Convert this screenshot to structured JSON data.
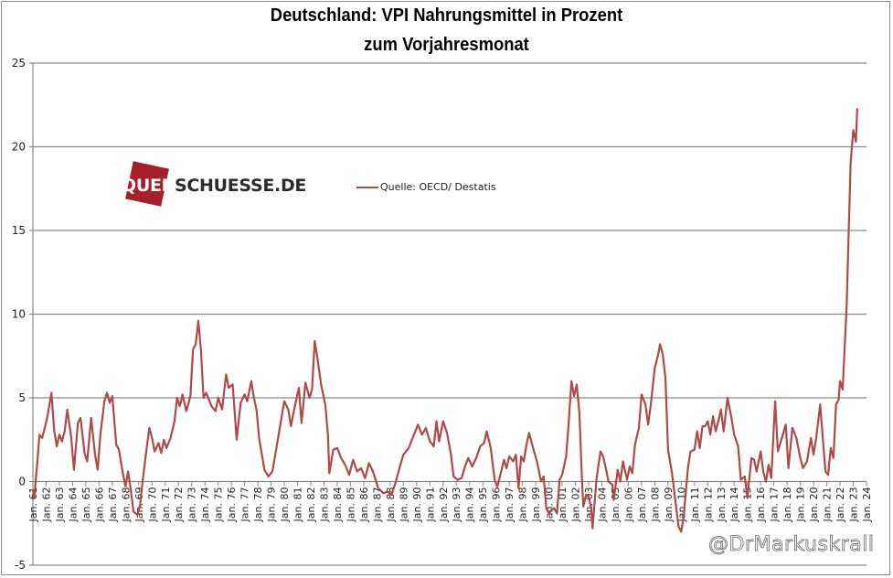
{
  "chart_data": {
    "type": "line",
    "title": "Deutschland: VPI Nahrungsmittel in Prozent",
    "subtitle": "zum Vorjahresmonat",
    "xlabel": "",
    "ylabel": "",
    "ylim": [
      -5,
      25
    ],
    "xlim": [
      1961,
      2024
    ],
    "yticks": [
      -5,
      0,
      5,
      10,
      15,
      20,
      25
    ],
    "ytick_labels": [
      "-5",
      "0",
      "5",
      "10",
      "15",
      "20",
      "25"
    ],
    "xtick_labels": [
      "Jan. 61",
      "Jan. 62",
      "Jan. 63",
      "Jan. 64",
      "Jan. 65",
      "Jan. 66",
      "Jan. 67",
      "Jan. 68",
      "Jan. 69",
      "Jan. 70",
      "Jan. 71",
      "Jan. 72",
      "Jan. 73",
      "Jan. 74",
      "Jan. 75",
      "Jan. 76",
      "Jan. 77",
      "Jan. 78",
      "Jan. 79",
      "Jan. 80",
      "Jan. 81",
      "Jan. 82",
      "Jan. 83",
      "Jan. 84",
      "Jan. 85",
      "Jan. 86",
      "Jan. 87",
      "Jan. 88",
      "Jan. 89",
      "Jan. 90",
      "Jan. 91",
      "Jan. 92",
      "Jan. 93",
      "Jan. 94",
      "Jan. 95",
      "Jan. 96",
      "Jan. 97",
      "Jan. 98",
      "Jan. 99",
      "Jan. 00",
      "Jan. 01",
      "Jan. 02",
      "Jan. 03",
      "Jan. 04",
      "Jan. 05",
      "Jan. 06",
      "Jan. 07",
      "Jan. 08",
      "Jan. 09",
      "Jan. 10",
      "Jan. 11",
      "Jan. 12",
      "Jan. 13",
      "Jan. 14",
      "Jan. 15",
      "Jan. 16",
      "Jan. 17",
      "Jan. 18",
      "Jan. 19",
      "Jan. 20",
      "Jan. 21",
      "Jan. 22",
      "Jan. 23",
      "Jan. 24"
    ],
    "grid": "horizontal",
    "legend_position": "top-center",
    "series": [
      {
        "name": "Quelle: OECD/ Destatis",
        "color": "#b04a48",
        "points": [
          [
            1961.0,
            -0.5
          ],
          [
            1961.1,
            -1.0
          ],
          [
            1961.3,
            0.8
          ],
          [
            1961.5,
            2.8
          ],
          [
            1961.7,
            2.6
          ],
          [
            1961.9,
            3.2
          ],
          [
            1962.1,
            3.9
          ],
          [
            1962.4,
            5.3
          ],
          [
            1962.6,
            3.1
          ],
          [
            1962.8,
            2.1
          ],
          [
            1963.0,
            2.8
          ],
          [
            1963.2,
            2.4
          ],
          [
            1963.4,
            3.0
          ],
          [
            1963.6,
            4.3
          ],
          [
            1963.9,
            2.6
          ],
          [
            1964.1,
            0.7
          ],
          [
            1964.4,
            3.5
          ],
          [
            1964.6,
            3.8
          ],
          [
            1964.9,
            1.7
          ],
          [
            1965.1,
            1.2
          ],
          [
            1965.4,
            3.8
          ],
          [
            1965.7,
            1.6
          ],
          [
            1965.9,
            0.7
          ],
          [
            1966.1,
            2.8
          ],
          [
            1966.4,
            4.8
          ],
          [
            1966.6,
            5.3
          ],
          [
            1966.8,
            4.7
          ],
          [
            1967.0,
            5.1
          ],
          [
            1967.3,
            2.2
          ],
          [
            1967.5,
            1.9
          ],
          [
            1967.8,
            0.5
          ],
          [
            1968.0,
            -0.3
          ],
          [
            1968.2,
            0.6
          ],
          [
            1968.4,
            -0.5
          ],
          [
            1968.6,
            -1.8
          ],
          [
            1968.9,
            -2.0
          ],
          [
            1969.1,
            -1.4
          ],
          [
            1969.3,
            0.1
          ],
          [
            1969.6,
            2.0
          ],
          [
            1969.8,
            3.2
          ],
          [
            1970.0,
            2.6
          ],
          [
            1970.2,
            1.8
          ],
          [
            1970.5,
            2.3
          ],
          [
            1970.7,
            1.7
          ],
          [
            1970.9,
            2.5
          ],
          [
            1971.1,
            2.0
          ],
          [
            1971.4,
            2.6
          ],
          [
            1971.7,
            3.6
          ],
          [
            1971.9,
            5.0
          ],
          [
            1972.1,
            4.5
          ],
          [
            1972.3,
            5.2
          ],
          [
            1972.6,
            4.2
          ],
          [
            1972.9,
            5.1
          ],
          [
            1973.1,
            7.9
          ],
          [
            1973.3,
            8.2
          ],
          [
            1973.5,
            9.6
          ],
          [
            1973.7,
            7.9
          ],
          [
            1973.9,
            5.0
          ],
          [
            1974.1,
            5.3
          ],
          [
            1974.5,
            4.5
          ],
          [
            1974.8,
            4.2
          ],
          [
            1975.0,
            5.0
          ],
          [
            1975.3,
            4.3
          ],
          [
            1975.6,
            6.4
          ],
          [
            1975.8,
            5.6
          ],
          [
            1976.1,
            5.8
          ],
          [
            1976.4,
            2.5
          ],
          [
            1976.7,
            4.7
          ],
          [
            1977.0,
            5.2
          ],
          [
            1977.2,
            4.8
          ],
          [
            1977.5,
            6.0
          ],
          [
            1977.7,
            5.0
          ],
          [
            1977.9,
            4.3
          ],
          [
            1978.1,
            2.6
          ],
          [
            1978.5,
            0.7
          ],
          [
            1978.8,
            0.3
          ],
          [
            1979.1,
            0.6
          ],
          [
            1979.4,
            2.0
          ],
          [
            1979.7,
            3.4
          ],
          [
            1980.0,
            4.8
          ],
          [
            1980.3,
            4.3
          ],
          [
            1980.5,
            3.3
          ],
          [
            1980.8,
            4.5
          ],
          [
            1981.1,
            5.6
          ],
          [
            1981.3,
            3.5
          ],
          [
            1981.6,
            5.9
          ],
          [
            1981.9,
            5.0
          ],
          [
            1982.1,
            5.5
          ],
          [
            1982.3,
            8.4
          ],
          [
            1982.5,
            7.4
          ],
          [
            1982.8,
            5.7
          ],
          [
            1983.1,
            4.6
          ],
          [
            1983.3,
            2.8
          ],
          [
            1983.4,
            0.5
          ],
          [
            1983.7,
            1.9
          ],
          [
            1984.0,
            2.0
          ],
          [
            1984.3,
            1.4
          ],
          [
            1984.6,
            1.0
          ],
          [
            1984.9,
            0.4
          ],
          [
            1985.2,
            1.3
          ],
          [
            1985.5,
            0.6
          ],
          [
            1985.8,
            0.8
          ],
          [
            1986.1,
            0.2
          ],
          [
            1986.4,
            1.1
          ],
          [
            1986.7,
            0.6
          ],
          [
            1987.1,
            -0.4
          ],
          [
            1987.5,
            -0.7
          ],
          [
            1987.8,
            -0.6
          ],
          [
            1988.1,
            -0.8
          ],
          [
            1988.4,
            -0.1
          ],
          [
            1988.7,
            0.8
          ],
          [
            1989.0,
            1.6
          ],
          [
            1989.4,
            2.0
          ],
          [
            1989.8,
            2.8
          ],
          [
            1990.1,
            3.4
          ],
          [
            1990.4,
            2.8
          ],
          [
            1990.7,
            3.2
          ],
          [
            1991.0,
            2.4
          ],
          [
            1991.3,
            2.1
          ],
          [
            1991.5,
            3.6
          ],
          [
            1991.7,
            2.4
          ],
          [
            1992.0,
            3.6
          ],
          [
            1992.3,
            2.9
          ],
          [
            1992.6,
            1.6
          ],
          [
            1992.8,
            0.3
          ],
          [
            1993.1,
            0.1
          ],
          [
            1993.4,
            0.2
          ],
          [
            1993.7,
            1.0
          ],
          [
            1993.9,
            1.4
          ],
          [
            1994.2,
            0.9
          ],
          [
            1994.5,
            1.4
          ],
          [
            1994.8,
            2.1
          ],
          [
            1995.1,
            2.3
          ],
          [
            1995.3,
            3.0
          ],
          [
            1995.6,
            2.0
          ],
          [
            1995.9,
            0.1
          ],
          [
            1996.1,
            -0.3
          ],
          [
            1996.3,
            0.3
          ],
          [
            1996.6,
            1.3
          ],
          [
            1996.8,
            0.8
          ],
          [
            1997.0,
            1.5
          ],
          [
            1997.3,
            1.2
          ],
          [
            1997.5,
            1.6
          ],
          [
            1997.7,
            -0.4
          ],
          [
            1997.9,
            1.5
          ],
          [
            1998.1,
            1.2
          ],
          [
            1998.3,
            2.2
          ],
          [
            1998.5,
            2.9
          ],
          [
            1998.8,
            2.0
          ],
          [
            1999.1,
            1.2
          ],
          [
            1999.4,
            0.0
          ],
          [
            1999.6,
            0.3
          ],
          [
            1999.8,
            -1.6
          ],
          [
            2000.0,
            -1.9
          ],
          [
            2000.2,
            -1.7
          ],
          [
            2000.4,
            -1.6
          ],
          [
            2000.6,
            -1.9
          ],
          [
            2000.8,
            0.1
          ],
          [
            2001.0,
            0.4
          ],
          [
            2001.3,
            1.5
          ],
          [
            2001.5,
            3.6
          ],
          [
            2001.7,
            6.0
          ],
          [
            2001.9,
            5.1
          ],
          [
            2002.1,
            5.8
          ],
          [
            2002.3,
            4.1
          ],
          [
            2002.5,
            0.0
          ],
          [
            2002.6,
            -1.5
          ],
          [
            2002.8,
            -0.8
          ],
          [
            2003.0,
            -0.9
          ],
          [
            2003.2,
            -1.6
          ],
          [
            2003.3,
            -2.8
          ],
          [
            2003.6,
            0.2
          ],
          [
            2003.9,
            1.8
          ],
          [
            2004.1,
            1.5
          ],
          [
            2004.3,
            0.8
          ],
          [
            2004.5,
            0.0
          ],
          [
            2004.8,
            -0.2
          ],
          [
            2004.9,
            -1.1
          ],
          [
            2005.2,
            0.7
          ],
          [
            2005.4,
            0.0
          ],
          [
            2005.6,
            1.2
          ],
          [
            2005.9,
            0.1
          ],
          [
            2006.1,
            0.9
          ],
          [
            2006.3,
            0.5
          ],
          [
            2006.5,
            2.2
          ],
          [
            2006.8,
            3.2
          ],
          [
            2007.0,
            5.2
          ],
          [
            2007.3,
            4.6
          ],
          [
            2007.5,
            3.4
          ],
          [
            2007.7,
            4.6
          ],
          [
            2008.0,
            6.8
          ],
          [
            2008.2,
            7.4
          ],
          [
            2008.4,
            8.2
          ],
          [
            2008.6,
            7.6
          ],
          [
            2008.8,
            6.2
          ],
          [
            2009.0,
            1.9
          ],
          [
            2009.3,
            0.5
          ],
          [
            2009.5,
            -0.8
          ],
          [
            2009.8,
            -2.7
          ],
          [
            2010.0,
            -3.0
          ],
          [
            2010.2,
            -2.0
          ],
          [
            2010.5,
            0.8
          ],
          [
            2010.7,
            1.8
          ],
          [
            2011.0,
            1.9
          ],
          [
            2011.2,
            3.0
          ],
          [
            2011.4,
            2.0
          ],
          [
            2011.6,
            3.3
          ],
          [
            2011.8,
            3.3
          ],
          [
            2012.0,
            3.6
          ],
          [
            2012.2,
            2.8
          ],
          [
            2012.4,
            3.9
          ],
          [
            2012.6,
            3.0
          ],
          [
            2012.8,
            3.6
          ],
          [
            2013.0,
            4.3
          ],
          [
            2013.2,
            3.0
          ],
          [
            2013.5,
            5.0
          ],
          [
            2013.8,
            3.8
          ],
          [
            2014.0,
            2.8
          ],
          [
            2014.3,
            2.1
          ],
          [
            2014.5,
            0.1
          ],
          [
            2014.8,
            0.3
          ],
          [
            2015.0,
            -1.0
          ],
          [
            2015.3,
            1.4
          ],
          [
            2015.5,
            1.3
          ],
          [
            2015.7,
            0.6
          ],
          [
            2016.0,
            1.8
          ],
          [
            2016.2,
            0.6
          ],
          [
            2016.4,
            0.0
          ],
          [
            2016.6,
            1.0
          ],
          [
            2016.8,
            0.2
          ],
          [
            2017.1,
            4.8
          ],
          [
            2017.3,
            1.8
          ],
          [
            2017.6,
            2.6
          ],
          [
            2017.9,
            3.4
          ],
          [
            2018.1,
            0.8
          ],
          [
            2018.4,
            3.2
          ],
          [
            2018.7,
            2.6
          ],
          [
            2019.0,
            1.4
          ],
          [
            2019.2,
            0.8
          ],
          [
            2019.5,
            1.2
          ],
          [
            2019.8,
            2.6
          ],
          [
            2020.0,
            1.6
          ],
          [
            2020.2,
            2.6
          ],
          [
            2020.5,
            4.6
          ],
          [
            2020.7,
            2.6
          ],
          [
            2020.9,
            0.6
          ],
          [
            2021.1,
            0.4
          ],
          [
            2021.3,
            2.0
          ],
          [
            2021.5,
            1.4
          ],
          [
            2021.7,
            4.6
          ],
          [
            2021.9,
            4.9
          ],
          [
            2022.0,
            6.0
          ],
          [
            2022.2,
            5.5
          ],
          [
            2022.5,
            10.5
          ],
          [
            2022.8,
            19.0
          ],
          [
            2023.0,
            21.0
          ],
          [
            2023.2,
            20.3
          ],
          [
            2023.3,
            22.3
          ]
        ]
      }
    ]
  },
  "logo": {
    "text_part1": "QUER",
    "text_part2": "SCHUESSE.DE",
    "color": "#a61f2a"
  },
  "watermark": "@DrMarkuskrall"
}
